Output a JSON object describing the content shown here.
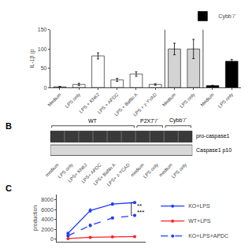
{
  "chart_data": [
    {
      "type": "bar",
      "categories": [
        "Medium",
        "LPS only",
        "LPS + KN62",
        "LPS + APDC",
        "LPS + Bafilo A",
        "LPS + z-YVAD",
        "Medium",
        "LPS only",
        "Medium",
        "LPS only"
      ],
      "series": [
        {
          "color": "white",
          "values": [
            2,
            8,
            82,
            20,
            35,
            8,
            null,
            null,
            null,
            null
          ],
          "errors": [
            1,
            3,
            8,
            4,
            6,
            2,
            null,
            null,
            null,
            null
          ]
        },
        {
          "color": "lightgray",
          "values": [
            null,
            null,
            null,
            null,
            null,
            null,
            100,
            100,
            null,
            null
          ],
          "errors": [
            null,
            null,
            null,
            null,
            null,
            null,
            15,
            25,
            null,
            null
          ]
        },
        {
          "name": "Cybb⁻/⁻",
          "color": "black",
          "values": [
            null,
            null,
            null,
            null,
            null,
            null,
            null,
            null,
            5,
            68
          ],
          "errors": [
            null,
            null,
            null,
            null,
            null,
            null,
            null,
            null,
            1,
            5
          ]
        }
      ],
      "ylabel": "IL-1β (p",
      "ylim": [
        0,
        150
      ],
      "yticks": [
        0,
        50,
        100,
        150
      ],
      "legend": "upper right",
      "grid": false
    },
    {
      "type": "blot",
      "title": "B",
      "categories": [
        "medium",
        "LPS only",
        "LPS+ KN62",
        "LPS+ APDC",
        "LPS+ Bafilo A",
        "LPS+ z-YCAD",
        "medium",
        "LPS only",
        "medium",
        "LPS only"
      ],
      "groups": [
        {
          "name": "WT",
          "lanes": 6
        },
        {
          "name": "P2X7⁻/⁻",
          "lanes": 2
        },
        {
          "name": "Cybb⁻/⁻",
          "lanes": 2
        }
      ],
      "rows": [
        "pro-caspase1",
        "Caspase1 p10"
      ]
    },
    {
      "type": "line",
      "title": "C",
      "ylabel": "production",
      "xlim": [
        0.5,
        4.5
      ],
      "ylim": [
        -500,
        9000
      ],
      "yticks": [
        0,
        2000,
        4000,
        6000,
        8000
      ],
      "tick_labels": "y",
      "legend": "right",
      "grid": false,
      "series": [
        {
          "name": "KO+LPS",
          "color": "#1f3cff",
          "marker": "circle",
          "line_style": "solid",
          "x": [
            1,
            2,
            3,
            4
          ],
          "values": [
            1200,
            5800,
            7100,
            7400
          ],
          "errors": [
            150,
            350,
            250,
            200
          ]
        },
        {
          "name": "WT+LPS",
          "color": "#ff2222",
          "marker": "circle",
          "line_style": "solid",
          "x": [
            1,
            2,
            3,
            4
          ],
          "values": [
            150,
            380,
            480,
            550
          ],
          "errors": [
            40,
            60,
            50,
            55
          ]
        },
        {
          "name": "KO+LPS+APDC",
          "color": "#1f3cff",
          "marker": "circle",
          "line_style": "dashed",
          "x": [
            1,
            2,
            3,
            4
          ],
          "values": [
            700,
            2800,
            4300,
            4800
          ],
          "errors": [
            120,
            280,
            220,
            180
          ]
        }
      ],
      "bracket": {
        "x": 3.85,
        "y": [
          7400,
          4800
        ]
      },
      "annotations": [
        {
          "text": "**",
          "y": 6800
        },
        {
          "text": "***",
          "y": 5400
        }
      ]
    }
  ]
}
